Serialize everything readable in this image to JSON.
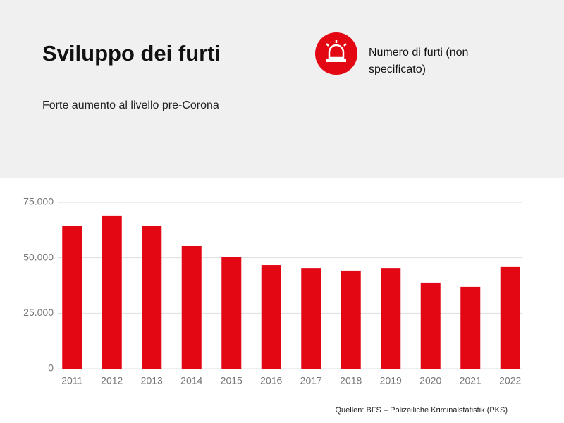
{
  "chart_data": {
    "type": "bar",
    "title": "Sviluppo dei furti",
    "subtitle": "Forte aumento al livello pre-Corona",
    "source": "Quellen: BFS – Polizeiliche Kriminalstatistik (PKS)",
    "categories": [
      "2011",
      "2012",
      "2013",
      "2014",
      "2015",
      "2016",
      "2017",
      "2018",
      "2019",
      "2020",
      "2021",
      "2022"
    ],
    "series": [
      {
        "name": "Numero di furti (non specificato)",
        "color": "#e30613",
        "values": [
          64500,
          69000,
          64500,
          55300,
          50500,
          46700,
          45400,
          44200,
          45400,
          38800,
          36900,
          45800
        ]
      }
    ],
    "ylim": [
      0,
      75000
    ],
    "yticks": [
      0,
      {
        "value": 25000,
        "label": "25.000"
      },
      {
        "value": 50000,
        "label": "50.000"
      },
      {
        "value": 75000,
        "label": "75.000"
      }
    ],
    "grid": true
  }
}
